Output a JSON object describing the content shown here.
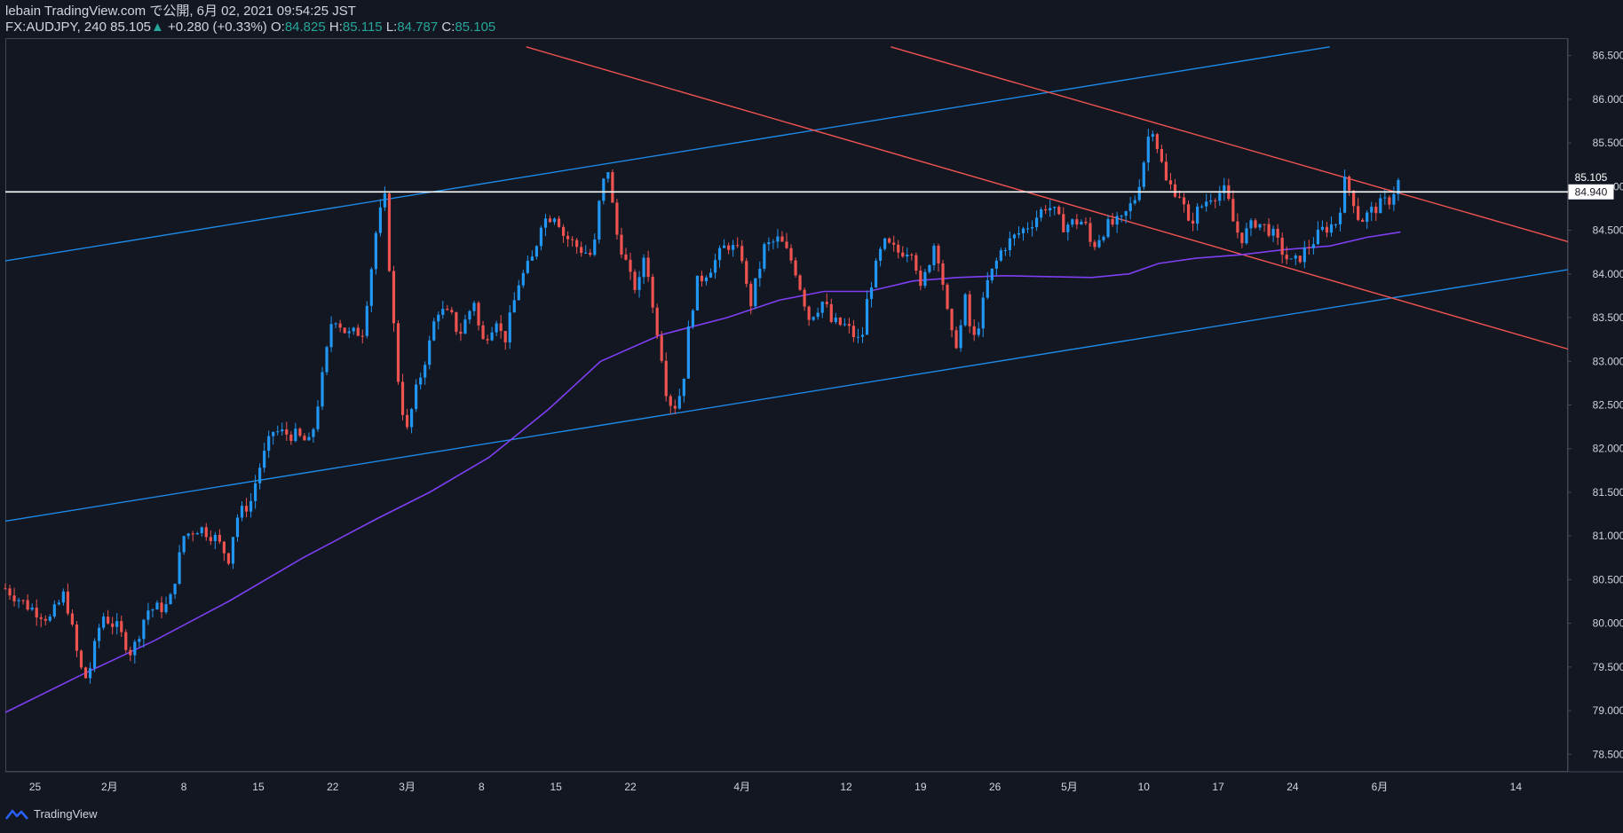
{
  "header": {
    "line1": "lebain TradingView.com で公開, 6月 02, 2021 09:54:25 JST",
    "symbol": "FX:AUDJPY, 240",
    "last": "85.105",
    "change": "+0.280 (+0.33%)",
    "o_label": "O:",
    "o_value": "84.825",
    "h_label": "H:",
    "h_value": "85.115",
    "l_label": "L:",
    "l_value": "84.787",
    "c_label": "C:",
    "c_value": "85.105"
  },
  "footer": {
    "brand": "TradingView",
    "icon": "tradingview-logo-icon"
  },
  "colors": {
    "background": "#131722",
    "up": "#2196f3",
    "down": "#ef5350",
    "ma": "#7e3ff2",
    "trend_blue": "#1e88e5",
    "trend_red": "#ef5350",
    "hline": "#ffffff",
    "text": "#d1d4dc",
    "green": "#26a69a"
  },
  "chart_data": {
    "type": "candlestick",
    "symbol": "FX:AUDJPY",
    "interval": "240",
    "ylim": [
      78.3,
      86.7
    ],
    "y_ticks": [
      "78.500",
      "79.000",
      "79.500",
      "80.000",
      "80.500",
      "81.000",
      "81.500",
      "82.000",
      "82.500",
      "83.000",
      "83.500",
      "84.000",
      "84.500",
      "85.000",
      "85.500",
      "86.000",
      "86.500"
    ],
    "x_ticks": [
      {
        "label": "25",
        "x": 4
      },
      {
        "label": "2月",
        "x": 14
      },
      {
        "label": "8",
        "x": 24
      },
      {
        "label": "15",
        "x": 34
      },
      {
        "label": "22",
        "x": 44
      },
      {
        "label": "3月",
        "x": 54
      },
      {
        "label": "8",
        "x": 64
      },
      {
        "label": "15",
        "x": 74
      },
      {
        "label": "22",
        "x": 84
      },
      {
        "label": "4月",
        "x": 99
      },
      {
        "label": "12",
        "x": 113
      },
      {
        "label": "19",
        "x": 123
      },
      {
        "label": "26",
        "x": 133
      },
      {
        "label": "5月",
        "x": 143
      },
      {
        "label": "10",
        "x": 153
      },
      {
        "label": "17",
        "x": 163
      },
      {
        "label": "24",
        "x": 173
      },
      {
        "label": "6月",
        "x": 184.7
      },
      {
        "label": "14",
        "x": 203
      }
    ],
    "x_range": [
      0,
      210
    ],
    "last_x": 187.5,
    "price_labels": [
      {
        "value": 85.105,
        "text": "85.105"
      },
      {
        "value": 84.94,
        "text": "84.940"
      }
    ],
    "horizontal_line": 84.94,
    "trendlines": [
      {
        "color": "blue",
        "from": [
          0,
          84.15
        ],
        "to": [
          178,
          86.6
        ]
      },
      {
        "color": "blue",
        "from": [
          0,
          81.17
        ],
        "to": [
          210,
          84.05
        ]
      },
      {
        "color": "red",
        "from": [
          70,
          86.6
        ],
        "to": [
          210,
          83.14
        ]
      },
      {
        "color": "red",
        "from": [
          119,
          86.6
        ],
        "to": [
          210,
          84.37
        ]
      }
    ],
    "ma_points": [
      [
        0,
        78.98
      ],
      [
        10,
        79.4
      ],
      [
        20,
        79.8
      ],
      [
        30,
        80.25
      ],
      [
        40,
        80.75
      ],
      [
        50,
        81.2
      ],
      [
        57,
        81.5
      ],
      [
        65,
        81.9
      ],
      [
        73,
        82.45
      ],
      [
        80,
        83.0
      ],
      [
        88,
        83.3
      ],
      [
        97,
        83.5
      ],
      [
        104,
        83.7
      ],
      [
        110,
        83.8
      ],
      [
        116,
        83.8
      ],
      [
        122,
        83.92
      ],
      [
        128,
        83.96
      ],
      [
        134,
        83.98
      ],
      [
        140,
        83.97
      ],
      [
        146,
        83.96
      ],
      [
        151,
        84.0
      ],
      [
        155,
        84.12
      ],
      [
        160,
        84.18
      ],
      [
        166,
        84.22
      ],
      [
        172,
        84.28
      ],
      [
        178,
        84.32
      ],
      [
        183,
        84.42
      ],
      [
        187.5,
        84.48
      ]
    ],
    "path_points": [
      [
        0,
        80.4
      ],
      [
        3,
        80.2
      ],
      [
        6,
        80.05
      ],
      [
        8,
        80.35
      ],
      [
        10,
        79.5
      ],
      [
        11,
        79.35
      ],
      [
        13,
        80.1
      ],
      [
        15,
        79.95
      ],
      [
        17,
        79.65
      ],
      [
        19,
        80.15
      ],
      [
        22,
        80.2
      ],
      [
        24,
        81.0
      ],
      [
        26,
        81.1
      ],
      [
        28,
        81.0
      ],
      [
        30,
        80.75
      ],
      [
        31,
        81.2
      ],
      [
        33,
        81.4
      ],
      [
        34,
        81.75
      ],
      [
        36,
        82.2
      ],
      [
        39,
        82.15
      ],
      [
        41,
        82.05
      ],
      [
        43,
        83.0
      ],
      [
        44,
        83.55
      ],
      [
        46,
        83.3
      ],
      [
        48,
        83.35
      ],
      [
        49,
        83.95
      ],
      [
        50,
        84.6
      ],
      [
        51,
        84.85
      ],
      [
        52,
        83.6
      ],
      [
        53,
        82.6
      ],
      [
        54,
        82.2
      ],
      [
        55,
        82.6
      ],
      [
        57,
        83.2
      ],
      [
        58,
        83.6
      ],
      [
        60,
        83.5
      ],
      [
        61,
        83.3
      ],
      [
        63,
        83.7
      ],
      [
        64,
        83.2
      ],
      [
        66,
        83.5
      ],
      [
        67,
        83.2
      ],
      [
        69,
        83.9
      ],
      [
        71,
        84.2
      ],
      [
        72,
        84.6
      ],
      [
        74,
        84.7
      ],
      [
        75,
        84.45
      ],
      [
        77,
        84.3
      ],
      [
        79,
        84.2
      ],
      [
        80,
        84.95
      ],
      [
        81,
        85.2
      ],
      [
        82,
        84.5
      ],
      [
        83,
        84.25
      ],
      [
        84,
        83.95
      ],
      [
        85,
        83.8
      ],
      [
        86,
        84.3
      ],
      [
        87,
        83.6
      ],
      [
        88,
        83.2
      ],
      [
        89,
        82.55
      ],
      [
        90,
        82.5
      ],
      [
        91,
        82.7
      ],
      [
        92,
        83.5
      ],
      [
        93,
        83.9
      ],
      [
        95,
        84.1
      ],
      [
        97,
        84.35
      ],
      [
        99,
        84.2
      ],
      [
        100,
        83.6
      ],
      [
        102,
        84.3
      ],
      [
        104,
        84.4
      ],
      [
        106,
        84.1
      ],
      [
        108,
        83.5
      ],
      [
        110,
        83.7
      ],
      [
        111,
        83.45
      ],
      [
        113,
        83.4
      ],
      [
        115,
        83.2
      ],
      [
        116,
        83.8
      ],
      [
        118,
        84.35
      ],
      [
        120,
        84.25
      ],
      [
        122,
        84.3
      ],
      [
        123,
        83.8
      ],
      [
        124,
        84.1
      ],
      [
        125,
        84.4
      ],
      [
        126,
        83.9
      ],
      [
        127,
        83.3
      ],
      [
        128,
        83.2
      ],
      [
        129,
        83.7
      ],
      [
        130,
        83.2
      ],
      [
        131,
        83.5
      ],
      [
        132,
        83.9
      ],
      [
        134,
        84.3
      ],
      [
        136,
        84.45
      ],
      [
        138,
        84.6
      ],
      [
        140,
        84.8
      ],
      [
        141,
        84.7
      ],
      [
        142,
        84.55
      ],
      [
        144,
        84.6
      ],
      [
        145,
        84.6
      ],
      [
        146,
        84.3
      ],
      [
        148,
        84.55
      ],
      [
        150,
        84.6
      ],
      [
        152,
        84.9
      ],
      [
        153,
        85.3
      ],
      [
        154,
        85.75
      ],
      [
        155,
        85.4
      ],
      [
        156,
        85.05
      ],
      [
        158,
        84.9
      ],
      [
        159,
        84.55
      ],
      [
        160,
        84.7
      ],
      [
        162,
        84.9
      ],
      [
        164,
        84.95
      ],
      [
        165,
        84.6
      ],
      [
        166,
        84.4
      ],
      [
        168,
        84.6
      ],
      [
        170,
        84.5
      ],
      [
        172,
        84.2
      ],
      [
        173,
        84.1
      ],
      [
        175,
        84.3
      ],
      [
        177,
        84.5
      ],
      [
        179,
        84.6
      ],
      [
        180,
        85.05
      ],
      [
        181,
        84.9
      ],
      [
        182,
        84.6
      ],
      [
        184,
        84.75
      ],
      [
        186,
        84.85
      ],
      [
        187.5,
        85.105
      ]
    ]
  }
}
